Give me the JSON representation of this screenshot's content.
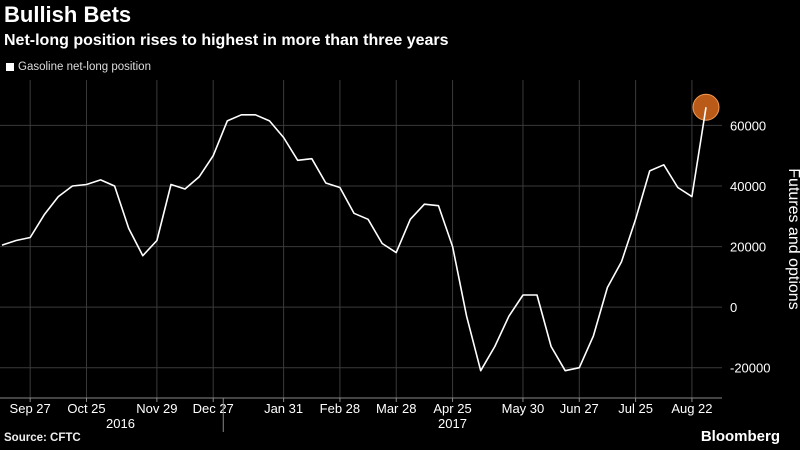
{
  "header": {
    "title": "Bullish Bets",
    "subtitle": "Net-long position rises to highest in more than three years"
  },
  "legend": {
    "label": "Gasoline net-long position"
  },
  "footer": {
    "source": "Source: CFTC",
    "brand": "Bloomberg"
  },
  "colors": {
    "background": "#000000",
    "line": "#ffffff",
    "grid": "#3a3a3a",
    "highlight": "#e8711f"
  },
  "chart_data": {
    "type": "line",
    "title": "Bullish Bets",
    "subtitle": "Net-long position rises to highest in more than three years",
    "ylabel": "Futures and options",
    "xlabel": "",
    "ylim": [
      -30000,
      75000
    ],
    "y_ticks": [
      -20000,
      0,
      20000,
      40000,
      60000
    ],
    "y_tick_labels": [
      "-20000",
      "0",
      "20000",
      "40000",
      "60000"
    ],
    "x_tick_labels": [
      "Sep 27",
      "Oct 25",
      "Nov 29",
      "Dec 27",
      "Jan 31",
      "Feb 28",
      "Mar 28",
      "Apr 25",
      "May 30",
      "Jun 27",
      "Jul 25",
      "Aug 22"
    ],
    "year_labels": [
      "2016",
      "2017"
    ],
    "grid": true,
    "legend_position": "top-left",
    "highlight_last_point": true,
    "series": [
      {
        "name": "Gasoline net-long position",
        "x": [
          "2016-09-13",
          "2016-09-20",
          "2016-09-27",
          "2016-10-04",
          "2016-10-11",
          "2016-10-18",
          "2016-10-25",
          "2016-11-01",
          "2016-11-08",
          "2016-11-15",
          "2016-11-22",
          "2016-11-29",
          "2016-12-06",
          "2016-12-13",
          "2016-12-20",
          "2016-12-27",
          "2017-01-03",
          "2017-01-10",
          "2017-01-17",
          "2017-01-24",
          "2017-01-31",
          "2017-02-07",
          "2017-02-14",
          "2017-02-21",
          "2017-02-28",
          "2017-03-07",
          "2017-03-14",
          "2017-03-21",
          "2017-03-28",
          "2017-04-04",
          "2017-04-11",
          "2017-04-18",
          "2017-04-25",
          "2017-05-02",
          "2017-05-09",
          "2017-05-16",
          "2017-05-23",
          "2017-05-30",
          "2017-06-06",
          "2017-06-13",
          "2017-06-20",
          "2017-06-27",
          "2017-07-04",
          "2017-07-11",
          "2017-07-18",
          "2017-07-25",
          "2017-08-01",
          "2017-08-08",
          "2017-08-15",
          "2017-08-22",
          "2017-08-29"
        ],
        "values": [
          20500,
          22000,
          23000,
          30500,
          36500,
          40000,
          40500,
          42000,
          40000,
          26000,
          17000,
          22000,
          40500,
          39000,
          43000,
          50000,
          61500,
          63500,
          63500,
          61500,
          56000,
          48500,
          49000,
          41000,
          39500,
          31000,
          29000,
          21000,
          18000,
          29000,
          34000,
          33500,
          20000,
          -3000,
          -21000,
          -13000,
          -3000,
          4000,
          4000,
          -13000,
          -21000,
          -20000,
          -9500,
          6500,
          15000,
          29000,
          45000,
          47000,
          39500,
          36500,
          66000
        ]
      }
    ]
  }
}
